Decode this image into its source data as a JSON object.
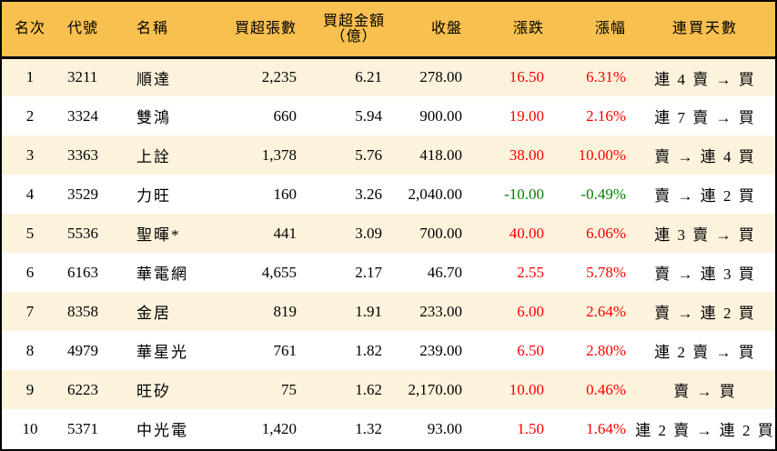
{
  "table": {
    "headers": {
      "rank": "名次",
      "code": "代號",
      "name": "名稱",
      "net_buy_lots": "買超張數",
      "net_buy_amount_line1": "買超金額",
      "net_buy_amount_line2": "（億）",
      "close": "收盤",
      "change": "漲跌",
      "change_pct": "漲幅",
      "consecutive_days": "連買天數"
    },
    "colors": {
      "header_bg": "#f8c04f",
      "odd_row_bg": "#fdf3dd",
      "even_row_bg": "#ffffff",
      "up": "#ff0000",
      "down": "#008000"
    },
    "rows": [
      {
        "rank": "1",
        "code": "3211",
        "name": "順達",
        "lots": "2,235",
        "amount": "6.21",
        "close": "278.00",
        "change": "16.50",
        "pct": "6.31%",
        "trend": "up",
        "days": "連 4 賣 → 買"
      },
      {
        "rank": "2",
        "code": "3324",
        "name": "雙鴻",
        "lots": "660",
        "amount": "5.94",
        "close": "900.00",
        "change": "19.00",
        "pct": "2.16%",
        "trend": "up",
        "days": "連 7 賣 → 買"
      },
      {
        "rank": "3",
        "code": "3363",
        "name": "上詮",
        "lots": "1,378",
        "amount": "5.76",
        "close": "418.00",
        "change": "38.00",
        "pct": "10.00%",
        "trend": "up",
        "days": "賣 → 連 4 買"
      },
      {
        "rank": "4",
        "code": "3529",
        "name": "力旺",
        "lots": "160",
        "amount": "3.26",
        "close": "2,040.00",
        "change": "-10.00",
        "pct": "-0.49%",
        "trend": "down",
        "days": "賣 → 連 2 買"
      },
      {
        "rank": "5",
        "code": "5536",
        "name": "聖暉*",
        "lots": "441",
        "amount": "3.09",
        "close": "700.00",
        "change": "40.00",
        "pct": "6.06%",
        "trend": "up",
        "days": "連 3 賣 → 買"
      },
      {
        "rank": "6",
        "code": "6163",
        "name": "華電網",
        "lots": "4,655",
        "amount": "2.17",
        "close": "46.70",
        "change": "2.55",
        "pct": "5.78%",
        "trend": "up",
        "days": "賣 → 連 3 買"
      },
      {
        "rank": "7",
        "code": "8358",
        "name": "金居",
        "lots": "819",
        "amount": "1.91",
        "close": "233.00",
        "change": "6.00",
        "pct": "2.64%",
        "trend": "up",
        "days": "賣 → 連 2 買"
      },
      {
        "rank": "8",
        "code": "4979",
        "name": "華星光",
        "lots": "761",
        "amount": "1.82",
        "close": "239.00",
        "change": "6.50",
        "pct": "2.80%",
        "trend": "up",
        "days": "連 2 賣 → 買"
      },
      {
        "rank": "9",
        "code": "6223",
        "name": "旺矽",
        "lots": "75",
        "amount": "1.62",
        "close": "2,170.00",
        "change": "10.00",
        "pct": "0.46%",
        "trend": "up",
        "days": "賣 → 買"
      },
      {
        "rank": "10",
        "code": "5371",
        "name": "中光電",
        "lots": "1,420",
        "amount": "1.32",
        "close": "93.00",
        "change": "1.50",
        "pct": "1.64%",
        "trend": "up",
        "days": "連 2 賣 → 連 2 買"
      }
    ]
  }
}
